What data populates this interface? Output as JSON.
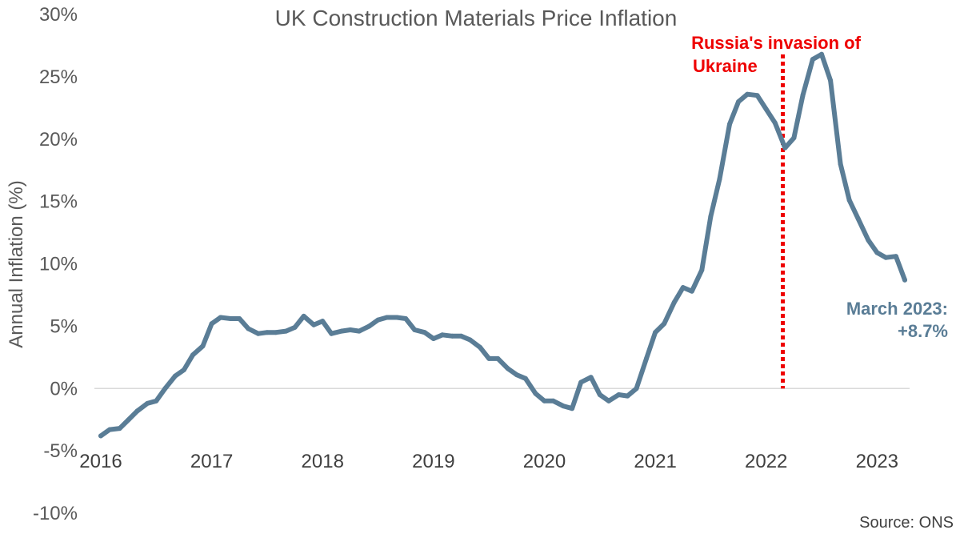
{
  "chart_data": {
    "type": "line",
    "title": "UK Construction Materials Price Inflation",
    "xlabel": "",
    "ylabel": "Annual Inflation (%)",
    "ylim": [
      -10,
      30
    ],
    "yticks": [
      30,
      25,
      20,
      15,
      10,
      5,
      0,
      -5,
      -10
    ],
    "ytick_labels": [
      "30%",
      "25%",
      "20%",
      "15%",
      "10%",
      "5%",
      "0%",
      "-5%",
      "-10%"
    ],
    "xlim": [
      2016,
      2023.25
    ],
    "xticks": [
      2016,
      2017,
      2018,
      2019,
      2020,
      2021,
      2022,
      2023
    ],
    "xtick_labels": [
      "2016",
      "2017",
      "2018",
      "2019",
      "2020",
      "2021",
      "2022",
      "2023"
    ],
    "series": [
      {
        "name": "Annual Inflation",
        "color": "#5a7d96",
        "points": [
          [
            2016.0,
            -3.8
          ],
          [
            2016.08,
            -3.3
          ],
          [
            2016.17,
            -3.2
          ],
          [
            2016.25,
            -2.5
          ],
          [
            2016.33,
            -1.8
          ],
          [
            2016.42,
            -1.2
          ],
          [
            2016.5,
            -1.0
          ],
          [
            2016.58,
            0.0
          ],
          [
            2016.67,
            1.0
          ],
          [
            2016.75,
            1.5
          ],
          [
            2016.83,
            2.7
          ],
          [
            2016.92,
            3.4
          ],
          [
            2017.0,
            5.2
          ],
          [
            2017.08,
            5.7
          ],
          [
            2017.17,
            5.6
          ],
          [
            2017.25,
            5.6
          ],
          [
            2017.33,
            4.8
          ],
          [
            2017.42,
            4.4
          ],
          [
            2017.5,
            4.5
          ],
          [
            2017.58,
            4.5
          ],
          [
            2017.67,
            4.6
          ],
          [
            2017.75,
            4.9
          ],
          [
            2017.83,
            5.8
          ],
          [
            2017.92,
            5.1
          ],
          [
            2018.0,
            5.4
          ],
          [
            2018.08,
            4.4
          ],
          [
            2018.17,
            4.6
          ],
          [
            2018.25,
            4.7
          ],
          [
            2018.33,
            4.6
          ],
          [
            2018.42,
            5.0
          ],
          [
            2018.5,
            5.5
          ],
          [
            2018.58,
            5.7
          ],
          [
            2018.67,
            5.7
          ],
          [
            2018.75,
            5.6
          ],
          [
            2018.83,
            4.7
          ],
          [
            2018.92,
            4.5
          ],
          [
            2019.0,
            4.0
          ],
          [
            2019.08,
            4.3
          ],
          [
            2019.17,
            4.2
          ],
          [
            2019.25,
            4.2
          ],
          [
            2019.33,
            3.9
          ],
          [
            2019.42,
            3.3
          ],
          [
            2019.5,
            2.4
          ],
          [
            2019.58,
            2.4
          ],
          [
            2019.67,
            1.6
          ],
          [
            2019.75,
            1.1
          ],
          [
            2019.83,
            0.8
          ],
          [
            2019.92,
            -0.4
          ],
          [
            2020.0,
            -1.0
          ],
          [
            2020.08,
            -1.0
          ],
          [
            2020.17,
            -1.4
          ],
          [
            2020.25,
            -1.6
          ],
          [
            2020.33,
            0.5
          ],
          [
            2020.42,
            0.9
          ],
          [
            2020.5,
            -0.5
          ],
          [
            2020.58,
            -1.0
          ],
          [
            2020.67,
            -0.5
          ],
          [
            2020.75,
            -0.6
          ],
          [
            2020.83,
            0.0
          ],
          [
            2020.92,
            2.4
          ],
          [
            2021.0,
            4.5
          ],
          [
            2021.08,
            5.2
          ],
          [
            2021.17,
            6.9
          ],
          [
            2021.25,
            8.1
          ],
          [
            2021.33,
            7.8
          ],
          [
            2021.42,
            9.5
          ],
          [
            2021.5,
            13.8
          ],
          [
            2021.58,
            16.8
          ],
          [
            2021.67,
            21.2
          ],
          [
            2021.75,
            23.0
          ],
          [
            2021.83,
            23.6
          ],
          [
            2021.92,
            23.5
          ],
          [
            2022.0,
            22.4
          ],
          [
            2022.08,
            21.3
          ],
          [
            2022.17,
            19.3
          ],
          [
            2022.25,
            20.1
          ],
          [
            2022.33,
            23.5
          ],
          [
            2022.42,
            26.4
          ],
          [
            2022.5,
            26.8
          ],
          [
            2022.58,
            24.7
          ],
          [
            2022.67,
            18.0
          ],
          [
            2022.75,
            15.1
          ],
          [
            2022.83,
            13.6
          ],
          [
            2022.92,
            11.9
          ],
          [
            2023.0,
            10.9
          ],
          [
            2023.08,
            10.5
          ],
          [
            2023.17,
            10.6
          ],
          [
            2023.25,
            8.7
          ]
        ]
      }
    ],
    "vline": {
      "x": 2022.15,
      "color": "#ee0000",
      "label_line1": "Russia's invasion of",
      "label_line2": "Ukraine"
    },
    "end_annotation": {
      "line1": "March 2023:",
      "line2": "+8.7%"
    },
    "source": "Source: ONS",
    "grid": false
  }
}
